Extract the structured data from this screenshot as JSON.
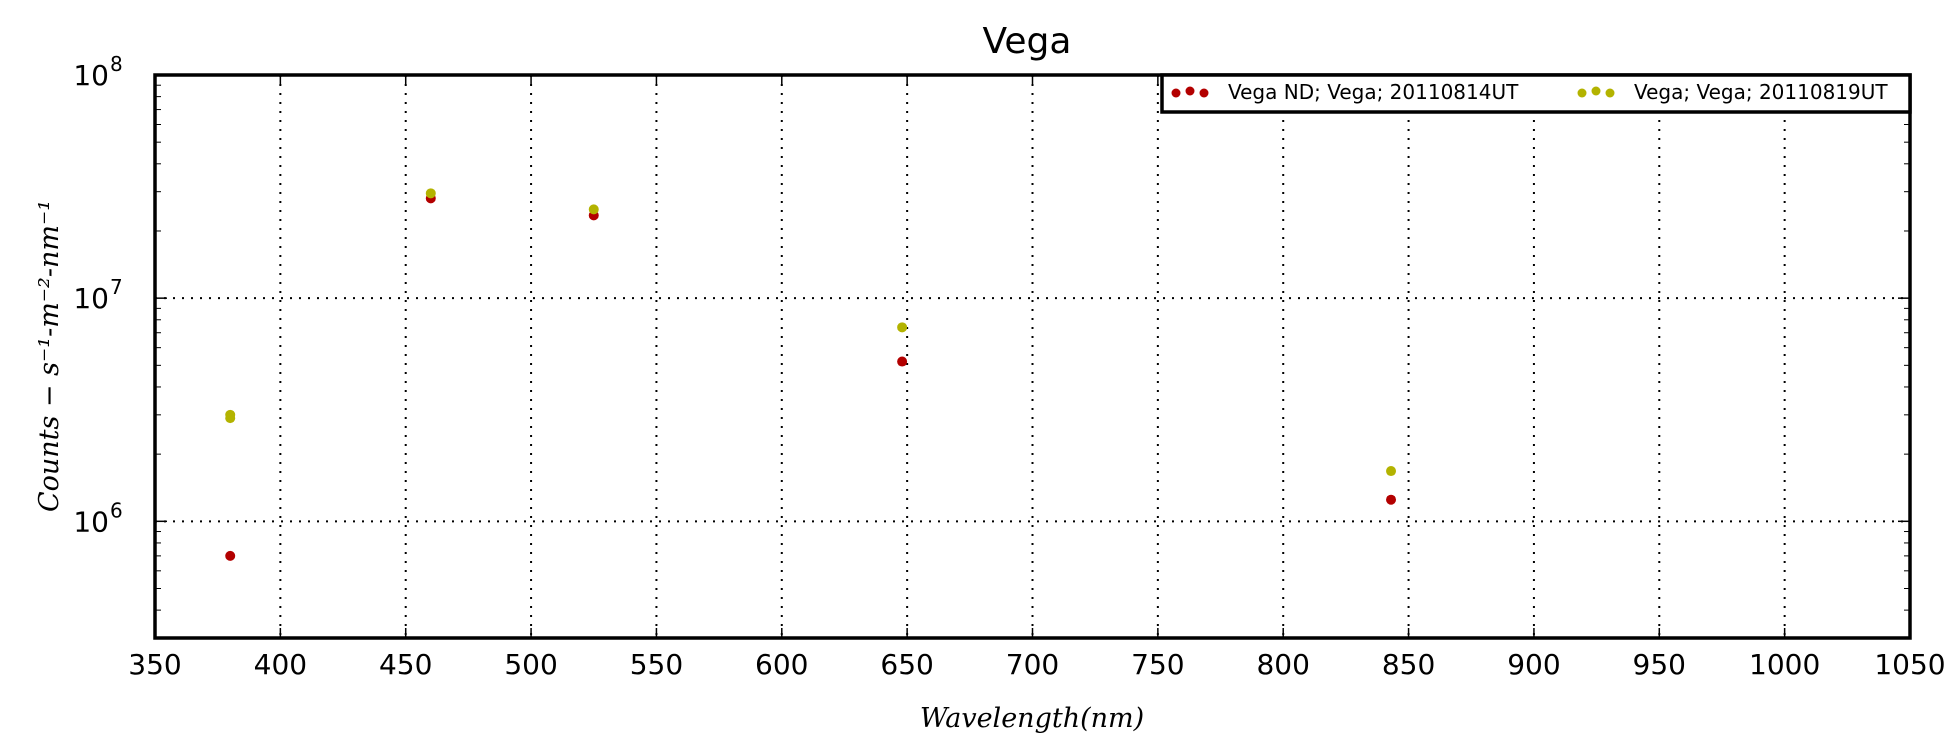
{
  "chart_data": {
    "type": "scatter",
    "title": "Vega",
    "xlabel": "Wavelength(nm)",
    "ylabel": "Counts − s⁻¹-m⁻²-nm⁻¹",
    "xlim": [
      350,
      1050
    ],
    "ylim": [
      300000,
      100000000
    ],
    "yscale": "log",
    "x_ticks": [
      350,
      400,
      450,
      500,
      550,
      600,
      650,
      700,
      750,
      800,
      850,
      900,
      950,
      1000,
      1050
    ],
    "y_ticks": [
      {
        "value": 1000000,
        "base": "10",
        "exp": "6"
      },
      {
        "value": 10000000,
        "base": "10",
        "exp": "7"
      },
      {
        "value": 100000000,
        "base": "10",
        "exp": "8"
      }
    ],
    "grid": true,
    "legend_position": "top-right",
    "series": [
      {
        "name": "Vega ND; Vega; 20110814UT",
        "color": "#b30000",
        "points": [
          {
            "x": 380,
            "y": 700000
          },
          {
            "x": 460,
            "y": 28000000
          },
          {
            "x": 525,
            "y": 23500000
          },
          {
            "x": 648,
            "y": 5200000
          },
          {
            "x": 843,
            "y": 1250000
          }
        ]
      },
      {
        "name": "Vega; Vega; 20110819UT",
        "color": "#b3b300",
        "points": [
          {
            "x": 380,
            "y": 2900000
          },
          {
            "x": 380,
            "y": 3000000
          },
          {
            "x": 460,
            "y": 29500000
          },
          {
            "x": 525,
            "y": 25000000
          },
          {
            "x": 648,
            "y": 7400000
          },
          {
            "x": 843,
            "y": 1680000
          }
        ]
      }
    ]
  }
}
